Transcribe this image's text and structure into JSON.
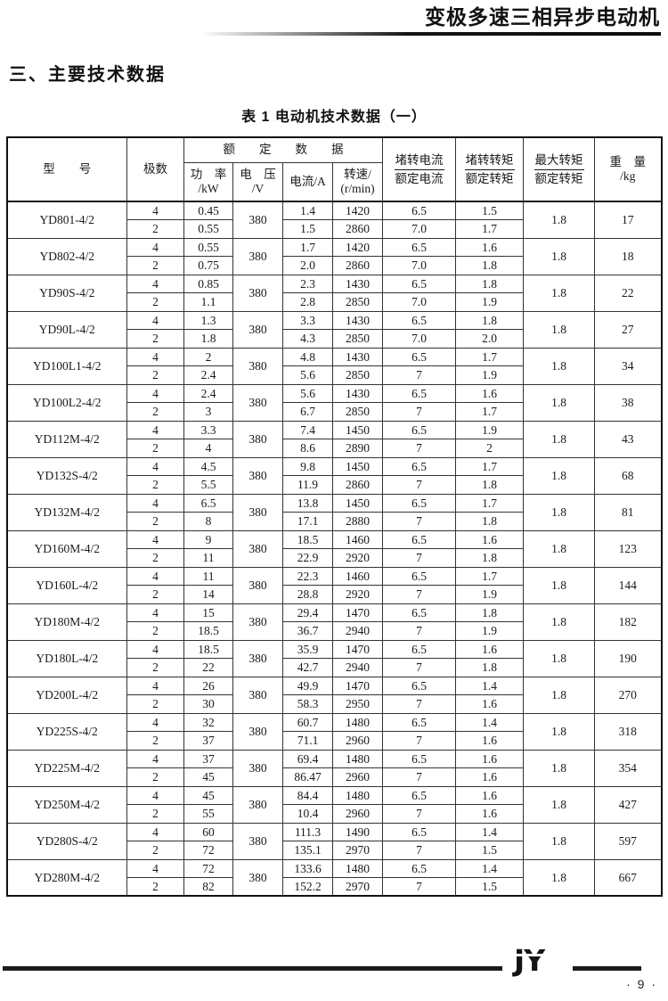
{
  "page": {
    "header_title": "变极多速三相异步电动机",
    "section_title": "三、主要技术数据",
    "table_title": "表 1  电动机技术数据（一）",
    "brand": "JY",
    "page_number": "· 9 ·"
  },
  "table": {
    "headers": {
      "model": "型　　号",
      "poles": "极数",
      "rated_group": "额　　定　　数　　据",
      "power_l1": "功　率",
      "power_l2": "/kW",
      "voltage_l1": "电　压",
      "voltage_l2": "/V",
      "current": "电流/A",
      "speed_l1": "转速/",
      "speed_l2": "(r/min)",
      "lr_current_top": "堵转电流",
      "lr_current_bottom": "额定电流",
      "lr_torque_top": "堵转转矩",
      "lr_torque_bottom": "额定转矩",
      "max_torque_top": "最大转矩",
      "max_torque_bottom": "额定转矩",
      "weight_l1": "重　量",
      "weight_l2": "/kg"
    },
    "sub_columns": [
      "poles",
      "power",
      "current",
      "speed",
      "locked_rotor_current_ratio",
      "locked_rotor_torque_ratio"
    ],
    "rows": [
      {
        "model": "YD801-4/2",
        "voltage": "380",
        "max_torque": "1.8",
        "weight": "17",
        "sub": [
          [
            "4",
            "0.45",
            "1.4",
            "1420",
            "6.5",
            "1.5"
          ],
          [
            "2",
            "0.55",
            "1.5",
            "2860",
            "7.0",
            "1.7"
          ]
        ]
      },
      {
        "model": "YD802-4/2",
        "voltage": "380",
        "max_torque": "1.8",
        "weight": "18",
        "sub": [
          [
            "4",
            "0.55",
            "1.7",
            "1420",
            "6.5",
            "1.6"
          ],
          [
            "2",
            "0.75",
            "2.0",
            "2860",
            "7.0",
            "1.8"
          ]
        ]
      },
      {
        "model": "YD90S-4/2",
        "voltage": "380",
        "max_torque": "1.8",
        "weight": "22",
        "sub": [
          [
            "4",
            "0.85",
            "2.3",
            "1430",
            "6.5",
            "1.8"
          ],
          [
            "2",
            "1.1",
            "2.8",
            "2850",
            "7.0",
            "1.9"
          ]
        ]
      },
      {
        "model": "YD90L-4/2",
        "voltage": "380",
        "max_torque": "1.8",
        "weight": "27",
        "sub": [
          [
            "4",
            "1.3",
            "3.3",
            "1430",
            "6.5",
            "1.8"
          ],
          [
            "2",
            "1.8",
            "4.3",
            "2850",
            "7.0",
            "2.0"
          ]
        ]
      },
      {
        "model": "YD100L1-4/2",
        "voltage": "380",
        "max_torque": "1.8",
        "weight": "34",
        "sub": [
          [
            "4",
            "2",
            "4.8",
            "1430",
            "6.5",
            "1.7"
          ],
          [
            "2",
            "2.4",
            "5.6",
            "2850",
            "7",
            "1.9"
          ]
        ]
      },
      {
        "model": "YD100L2-4/2",
        "voltage": "380",
        "max_torque": "1.8",
        "weight": "38",
        "sub": [
          [
            "4",
            "2.4",
            "5.6",
            "1430",
            "6.5",
            "1.6"
          ],
          [
            "2",
            "3",
            "6.7",
            "2850",
            "7",
            "1.7"
          ]
        ]
      },
      {
        "model": "YD112M-4/2",
        "voltage": "380",
        "max_torque": "1.8",
        "weight": "43",
        "sub": [
          [
            "4",
            "3.3",
            "7.4",
            "1450",
            "6.5",
            "1.9"
          ],
          [
            "2",
            "4",
            "8.6",
            "2890",
            "7",
            "2"
          ]
        ]
      },
      {
        "model": "YD132S-4/2",
        "voltage": "380",
        "max_torque": "1.8",
        "weight": "68",
        "sub": [
          [
            "4",
            "4.5",
            "9.8",
            "1450",
            "6.5",
            "1.7"
          ],
          [
            "2",
            "5.5",
            "11.9",
            "2860",
            "7",
            "1.8"
          ]
        ]
      },
      {
        "model": "YD132M-4/2",
        "voltage": "380",
        "max_torque": "1.8",
        "weight": "81",
        "sub": [
          [
            "4",
            "6.5",
            "13.8",
            "1450",
            "6.5",
            "1.7"
          ],
          [
            "2",
            "8",
            "17.1",
            "2880",
            "7",
            "1.8"
          ]
        ]
      },
      {
        "model": "YD160M-4/2",
        "voltage": "380",
        "max_torque": "1.8",
        "weight": "123",
        "sub": [
          [
            "4",
            "9",
            "18.5",
            "1460",
            "6.5",
            "1.6"
          ],
          [
            "2",
            "11",
            "22.9",
            "2920",
            "7",
            "1.8"
          ]
        ]
      },
      {
        "model": "YD160L-4/2",
        "voltage": "380",
        "max_torque": "1.8",
        "weight": "144",
        "sub": [
          [
            "4",
            "11",
            "22.3",
            "1460",
            "6.5",
            "1.7"
          ],
          [
            "2",
            "14",
            "28.8",
            "2920",
            "7",
            "1.9"
          ]
        ]
      },
      {
        "model": "YD180M-4/2",
        "voltage": "380",
        "max_torque": "1.8",
        "weight": "182",
        "sub": [
          [
            "4",
            "15",
            "29.4",
            "1470",
            "6.5",
            "1.8"
          ],
          [
            "2",
            "18.5",
            "36.7",
            "2940",
            "7",
            "1.9"
          ]
        ]
      },
      {
        "model": "YD180L-4/2",
        "voltage": "380",
        "max_torque": "1.8",
        "weight": "190",
        "sub": [
          [
            "4",
            "18.5",
            "35.9",
            "1470",
            "6.5",
            "1.6"
          ],
          [
            "2",
            "22",
            "42.7",
            "2940",
            "7",
            "1.8"
          ]
        ]
      },
      {
        "model": "YD200L-4/2",
        "voltage": "380",
        "max_torque": "1.8",
        "weight": "270",
        "sub": [
          [
            "4",
            "26",
            "49.9",
            "1470",
            "6.5",
            "1.4"
          ],
          [
            "2",
            "30",
            "58.3",
            "2950",
            "7",
            "1.6"
          ]
        ]
      },
      {
        "model": "YD225S-4/2",
        "voltage": "380",
        "max_torque": "1.8",
        "weight": "318",
        "sub": [
          [
            "4",
            "32",
            "60.7",
            "1480",
            "6.5",
            "1.4"
          ],
          [
            "2",
            "37",
            "71.1",
            "2960",
            "7",
            "1.6"
          ]
        ]
      },
      {
        "model": "YD225M-4/2",
        "voltage": "380",
        "max_torque": "1.8",
        "weight": "354",
        "sub": [
          [
            "4",
            "37",
            "69.4",
            "1480",
            "6.5",
            "1.6"
          ],
          [
            "2",
            "45",
            "86.47",
            "2960",
            "7",
            "1.6"
          ]
        ]
      },
      {
        "model": "YD250M-4/2",
        "voltage": "380",
        "max_torque": "1.8",
        "weight": "427",
        "sub": [
          [
            "4",
            "45",
            "84.4",
            "1480",
            "6.5",
            "1.6"
          ],
          [
            "2",
            "55",
            "10.4",
            "2960",
            "7",
            "1.6"
          ]
        ]
      },
      {
        "model": "YD280S-4/2",
        "voltage": "380",
        "max_torque": "1.8",
        "weight": "597",
        "sub": [
          [
            "4",
            "60",
            "111.3",
            "1490",
            "6.5",
            "1.4"
          ],
          [
            "2",
            "72",
            "135.1",
            "2970",
            "7",
            "1.5"
          ]
        ]
      },
      {
        "model": "YD280M-4/2",
        "voltage": "380",
        "max_torque": "1.8",
        "weight": "667",
        "sub": [
          [
            "4",
            "72",
            "133.6",
            "1480",
            "6.5",
            "1.4"
          ],
          [
            "2",
            "82",
            "152.2",
            "2970",
            "7",
            "1.5"
          ]
        ]
      }
    ]
  }
}
